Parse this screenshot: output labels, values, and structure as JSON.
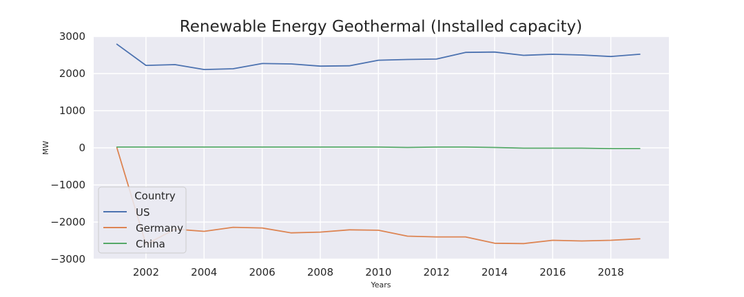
{
  "chart_data": {
    "type": "line",
    "title": "Renewable Energy Geothermal (Installed capacity)",
    "xlabel": "Years",
    "ylabel": "MW",
    "xlim": [
      2000.2,
      2020.0
    ],
    "ylim": [
      -3000,
      3000
    ],
    "xticks": [
      2002,
      2004,
      2006,
      2008,
      2010,
      2012,
      2014,
      2016,
      2018
    ],
    "yticks": [
      -3000,
      -2000,
      -1000,
      0,
      1000,
      2000,
      3000
    ],
    "grid": true,
    "background": "#EAEAF2",
    "legend": {
      "title": "Country",
      "position": "lower-left"
    },
    "x": [
      2001,
      2002,
      2003,
      2004,
      2005,
      2006,
      2007,
      2008,
      2009,
      2010,
      2011,
      2012,
      2013,
      2014,
      2015,
      2016,
      2017,
      2018,
      2019
    ],
    "series": [
      {
        "name": "US",
        "color": "#4C72B0",
        "values": [
          2790,
          2220,
          2240,
          2110,
          2130,
          2270,
          2260,
          2200,
          2210,
          2360,
          2380,
          2390,
          2570,
          2580,
          2490,
          2520,
          2500,
          2460,
          2520
        ]
      },
      {
        "name": "Germany",
        "color": "#DD8452",
        "values": [
          0,
          -2600,
          -2190,
          -2250,
          -2140,
          -2160,
          -2290,
          -2270,
          -2210,
          -2220,
          -2380,
          -2400,
          -2400,
          -2570,
          -2580,
          -2490,
          -2510,
          -2490,
          -2450
        ]
      },
      {
        "name": "China",
        "color": "#55A868",
        "values": [
          20,
          20,
          20,
          20,
          20,
          20,
          20,
          20,
          20,
          20,
          10,
          20,
          20,
          10,
          -10,
          -10,
          -10,
          -20,
          -20
        ]
      }
    ]
  }
}
